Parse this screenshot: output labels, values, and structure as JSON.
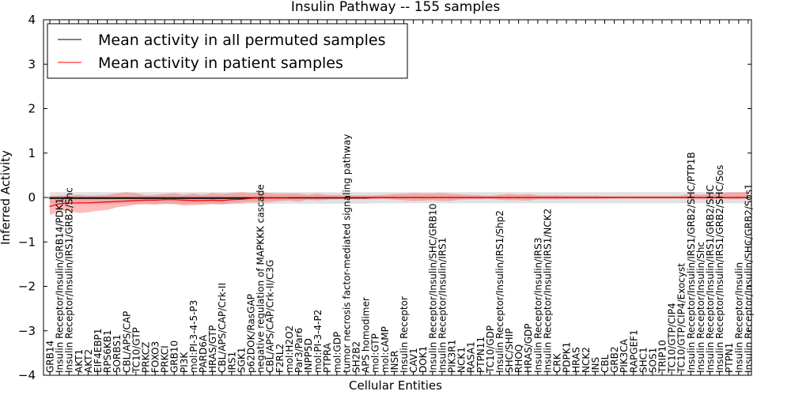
{
  "chart_data": {
    "type": "line",
    "title": "Insulin Pathway -- 155 samples",
    "xlabel": "Cellular Entities",
    "ylabel": "Inferred Activity",
    "ylim": [
      -4,
      4
    ],
    "yticks": [
      -4,
      -3,
      -2,
      -1,
      0,
      1,
      2,
      3,
      4
    ],
    "ytick_labels": [
      "−4",
      "−3",
      "−2",
      "−1",
      "0",
      "1",
      "2",
      "3",
      "4"
    ],
    "grid": false,
    "legend": {
      "placement": "top-left",
      "entries": [
        {
          "label": "Mean activity in all permuted samples",
          "color": "#000000"
        },
        {
          "label": "Mean activity in patient samples",
          "color": "#ff0000"
        }
      ]
    },
    "categories": [
      "GRB14",
      "Insulin Receptor/Insulin/GRB14/PDK1",
      "Insulin Receptor/Insulin/IRS1/GRB2/Shc",
      "AKT1",
      "AKT2",
      "EIF4EBP1",
      "RPS6KB1",
      "SORBS1",
      "CBL/APS/CAP",
      "TC10/GTP",
      "PRKCZ",
      "FOXO3",
      "PRKCI",
      "GRB10",
      "PI3K",
      "mol:PI-3-4-5-P3",
      "PARD6A",
      "HRAS/GTP",
      "CBL/APS/CAP/Crk-II",
      "IRS1",
      "SGK1",
      "p62DOK/RasGAP",
      "negative regulation of MAPKKK cascade",
      "CBL/APS/CAP/Crk-II/C3G",
      "F2RL2",
      "mol:H2O2",
      "Par3/Par6",
      "INPP5D",
      "mol:PI-3-4-P2",
      "PTPRA",
      "mol:GDP",
      "tumor necrosis factor-mediated signaling pathway",
      "SH2B2",
      "APS homodimer",
      "mol:GTP",
      "mol:cAMP",
      "INSR",
      "Insulin Receptor",
      "CAV1",
      "DOK1",
      "Insulin Receptor/Insulin/SHC/GRB10",
      "Insulin Receptor/Insulin/IRS1",
      "PIK3R1",
      "NCK1",
      "RASA1",
      "PTPN11",
      "TC10/GDP",
      "Insulin Receptor/Insulin/IRS1/Shp2",
      "SHC/SHIP",
      "RHOQ",
      "HRAS/GDP",
      "Insulin Receptor/Insulin/IRS3",
      "Insulin Receptor/Insulin/IRS1/NCK2",
      "CRK",
      "PDPK1",
      "HRAS",
      "NCK2",
      "INS",
      "CBL",
      "GRB2",
      "PIK3CA",
      "RAPGEF1",
      "SHC1",
      "SOS1",
      "TRIP10",
      "TC10/GTP/CIP4",
      "TC10/GTP/CIP4/Exocyst",
      "Insulin Receptor/Insulin/IRS1/GRB2/SHC/PTP1B",
      "Insulin Receptor/Insulin/Shc",
      "Insulin Receptor/Insulin/IRS1/GRB2/SHC",
      "Insulin Receptor/Insulin/IRS1/GRB2/SHC/Sos",
      "PTPN1",
      "Insulin Receptor/Insulin",
      "Insulin Receptor/Insulin/SHC/GRB2/Sos1"
    ],
    "series": [
      {
        "name": "Mean activity in all permuted samples",
        "color": "#000000",
        "values": [
          -0.02,
          -0.02,
          -0.02,
          -0.02,
          -0.02,
          -0.02,
          -0.02,
          -0.02,
          -0.02,
          -0.02,
          -0.02,
          -0.02,
          -0.02,
          -0.02,
          -0.02,
          -0.02,
          -0.02,
          -0.02,
          -0.02,
          -0.02,
          -0.02,
          -0.01,
          -0.01,
          -0.01,
          -0.01,
          -0.01,
          -0.01,
          -0.01,
          -0.01,
          -0.01,
          -0.01,
          -0.01,
          -0.01,
          -0.01,
          0,
          0,
          0,
          0,
          0,
          0,
          0,
          0,
          0,
          0,
          0,
          0,
          0,
          0,
          0,
          0,
          0,
          0,
          0,
          0,
          0,
          0,
          0,
          0,
          0,
          0,
          0,
          0,
          0,
          0,
          0,
          0,
          0,
          0,
          0,
          0,
          0,
          0,
          0,
          0
        ],
        "band_upper": [
          0.12,
          0.12,
          0.12,
          0.12,
          0.12,
          0.12,
          0.12,
          0.12,
          0.12,
          0.12,
          0.12,
          0.12,
          0.12,
          0.12,
          0.12,
          0.12,
          0.12,
          0.12,
          0.12,
          0.12,
          0.12,
          0.12,
          0.12,
          0.12,
          0.12,
          0.12,
          0.12,
          0.12,
          0.12,
          0.12,
          0.12,
          0.12,
          0.12,
          0.12,
          0.12,
          0.12,
          0.12,
          0.12,
          0.12,
          0.12,
          0.12,
          0.12,
          0.12,
          0.12,
          0.12,
          0.12,
          0.12,
          0.12,
          0.12,
          0.12,
          0.12,
          0.12,
          0.12,
          0.12,
          0.12,
          0.12,
          0.12,
          0.12,
          0.12,
          0.12,
          0.12,
          0.12,
          0.12,
          0.12,
          0.12,
          0.12,
          0.12,
          0.12,
          0.12,
          0.12,
          0.12,
          0.12,
          0.12,
          0.12
        ],
        "band_lower": [
          -0.15,
          -0.15,
          -0.15,
          -0.15,
          -0.15,
          -0.15,
          -0.15,
          -0.15,
          -0.15,
          -0.15,
          -0.15,
          -0.15,
          -0.15,
          -0.15,
          -0.15,
          -0.15,
          -0.15,
          -0.15,
          -0.15,
          -0.15,
          -0.15,
          -0.14,
          -0.14,
          -0.14,
          -0.14,
          -0.14,
          -0.14,
          -0.14,
          -0.14,
          -0.14,
          -0.14,
          -0.14,
          -0.14,
          -0.14,
          -0.13,
          -0.13,
          -0.13,
          -0.13,
          -0.13,
          -0.13,
          -0.13,
          -0.13,
          -0.13,
          -0.13,
          -0.13,
          -0.13,
          -0.13,
          -0.13,
          -0.13,
          -0.13,
          -0.13,
          -0.13,
          -0.13,
          -0.13,
          -0.13,
          -0.13,
          -0.13,
          -0.13,
          -0.13,
          -0.13,
          -0.13,
          -0.13,
          -0.13,
          -0.13,
          -0.13,
          -0.13,
          -0.13,
          -0.13,
          -0.13,
          -0.13,
          -0.13,
          -0.13,
          -0.13,
          -0.13
        ]
      },
      {
        "name": "Mean activity in patient samples",
        "color": "#ff0000",
        "values": [
          -0.2,
          -0.14,
          -0.13,
          -0.12,
          -0.12,
          -0.11,
          -0.1,
          -0.09,
          -0.08,
          -0.07,
          -0.06,
          -0.06,
          -0.05,
          -0.05,
          -0.06,
          -0.07,
          -0.07,
          -0.06,
          -0.07,
          -0.05,
          -0.04,
          -0.02,
          -0.01,
          -0.01,
          -0.01,
          0,
          0,
          0,
          0,
          0,
          0,
          0,
          0,
          0,
          0,
          0,
          0,
          0,
          0,
          0,
          0,
          0,
          0,
          0,
          0,
          0,
          0,
          0,
          0,
          0,
          0,
          0,
          0,
          0,
          0,
          0,
          0,
          0,
          0,
          0,
          0,
          0,
          0,
          0,
          0,
          0,
          0,
          0,
          0,
          0,
          0,
          0,
          0,
          0
        ],
        "band_upper": [
          0.03,
          0.04,
          0.05,
          0.06,
          0.04,
          0.05,
          0.06,
          0.09,
          0.12,
          0.1,
          0.05,
          0.06,
          0.08,
          0.1,
          0.06,
          0.09,
          0.06,
          0.1,
          0.08,
          0.1,
          0.12,
          0.1,
          0.12,
          0.1,
          0.09,
          0.09,
          0.09,
          0.06,
          0.09,
          0.06,
          0.06,
          0.05,
          0.05,
          0.05,
          0.05,
          0.06,
          0.08,
          0.08,
          0.1,
          0.09,
          0.09,
          0.1,
          0.08,
          0.07,
          0.06,
          0.05,
          0.04,
          0.06,
          0.08,
          0.06,
          0.08,
          0.05,
          0.05,
          0.05,
          0.04,
          0.04,
          0.04,
          0.04,
          0.03,
          0.03,
          0.03,
          0.03,
          0.03,
          0.03,
          0.03,
          0.03,
          0.04,
          0.08,
          0.06,
          0.08,
          0.1,
          0.12,
          0.12,
          0.12
        ],
        "band_lower": [
          -0.4,
          -0.3,
          -0.3,
          -0.35,
          -0.33,
          -0.3,
          -0.28,
          -0.22,
          -0.2,
          -0.16,
          -0.15,
          -0.16,
          -0.14,
          -0.15,
          -0.18,
          -0.17,
          -0.16,
          -0.15,
          -0.16,
          -0.13,
          -0.12,
          -0.1,
          -0.11,
          -0.1,
          -0.08,
          -0.07,
          -0.09,
          -0.05,
          -0.07,
          -0.05,
          -0.04,
          -0.04,
          -0.03,
          -0.04,
          -0.04,
          -0.03,
          -0.05,
          -0.06,
          -0.08,
          -0.07,
          -0.06,
          -0.08,
          -0.07,
          -0.05,
          -0.04,
          -0.04,
          -0.03,
          -0.05,
          -0.06,
          -0.06,
          -0.07,
          -0.04,
          -0.04,
          -0.04,
          -0.03,
          -0.03,
          -0.03,
          -0.03,
          -0.03,
          -0.02,
          -0.02,
          -0.02,
          -0.02,
          -0.02,
          -0.02,
          -0.02,
          -0.02,
          -0.04,
          -0.04,
          -0.04,
          -0.03,
          -0.04,
          -0.04,
          -0.03
        ]
      }
    ]
  }
}
